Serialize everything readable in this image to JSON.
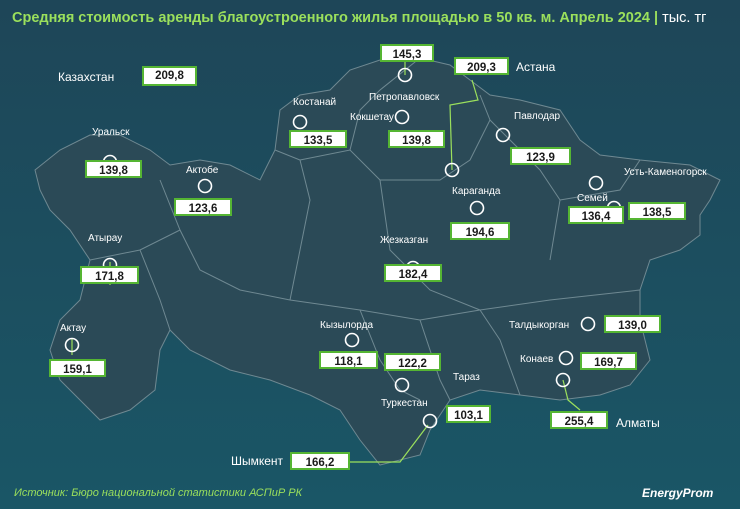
{
  "title": "Средняя стоимость аренды благоустроенного жилья площадью в 50 кв. м. Апрель 2024",
  "unit": "тыс. тг",
  "source": "Источник: Бюро национальной статистики АСПиР РК",
  "brand": "EnergyProm",
  "colors": {
    "background": "#1f4b5e",
    "map": "#294a58",
    "accent": "#55b533"
  },
  "kazakhstan": {
    "label": "Казахстан",
    "value": "209,8"
  },
  "regions": [
    {
      "name": "Уральск",
      "value": "139,8"
    },
    {
      "name": "Актобе",
      "value": "123,6"
    },
    {
      "name": "Атырау",
      "value": "171,8"
    },
    {
      "name": "Актау",
      "value": "159,1"
    },
    {
      "name": "Костанай",
      "value": "133,5"
    },
    {
      "name": "Петропавловск",
      "value": "145,3"
    },
    {
      "name": "Кокшетау",
      "value": "139,8"
    },
    {
      "name": "Астана",
      "value": "209,3"
    },
    {
      "name": "Павлодар",
      "value": "123,9"
    },
    {
      "name": "Караганда",
      "value": "194,6"
    },
    {
      "name": "Жезказган",
      "value": "182,4"
    },
    {
      "name": "Семей",
      "value": "136,4"
    },
    {
      "name": "Усть-Каменогорск",
      "value": "138,5"
    },
    {
      "name": "Кызылорда",
      "value": "118,1"
    },
    {
      "name": "Туркестан",
      "value": "122,2"
    },
    {
      "name": "Тараз",
      "value": "103,1"
    },
    {
      "name": "Шымкент",
      "value": "166,2"
    },
    {
      "name": "Талдыкорган",
      "value": "139,0"
    },
    {
      "name": "Конаев",
      "value": "169,7"
    },
    {
      "name": "Алматы",
      "value": "255,4"
    }
  ]
}
